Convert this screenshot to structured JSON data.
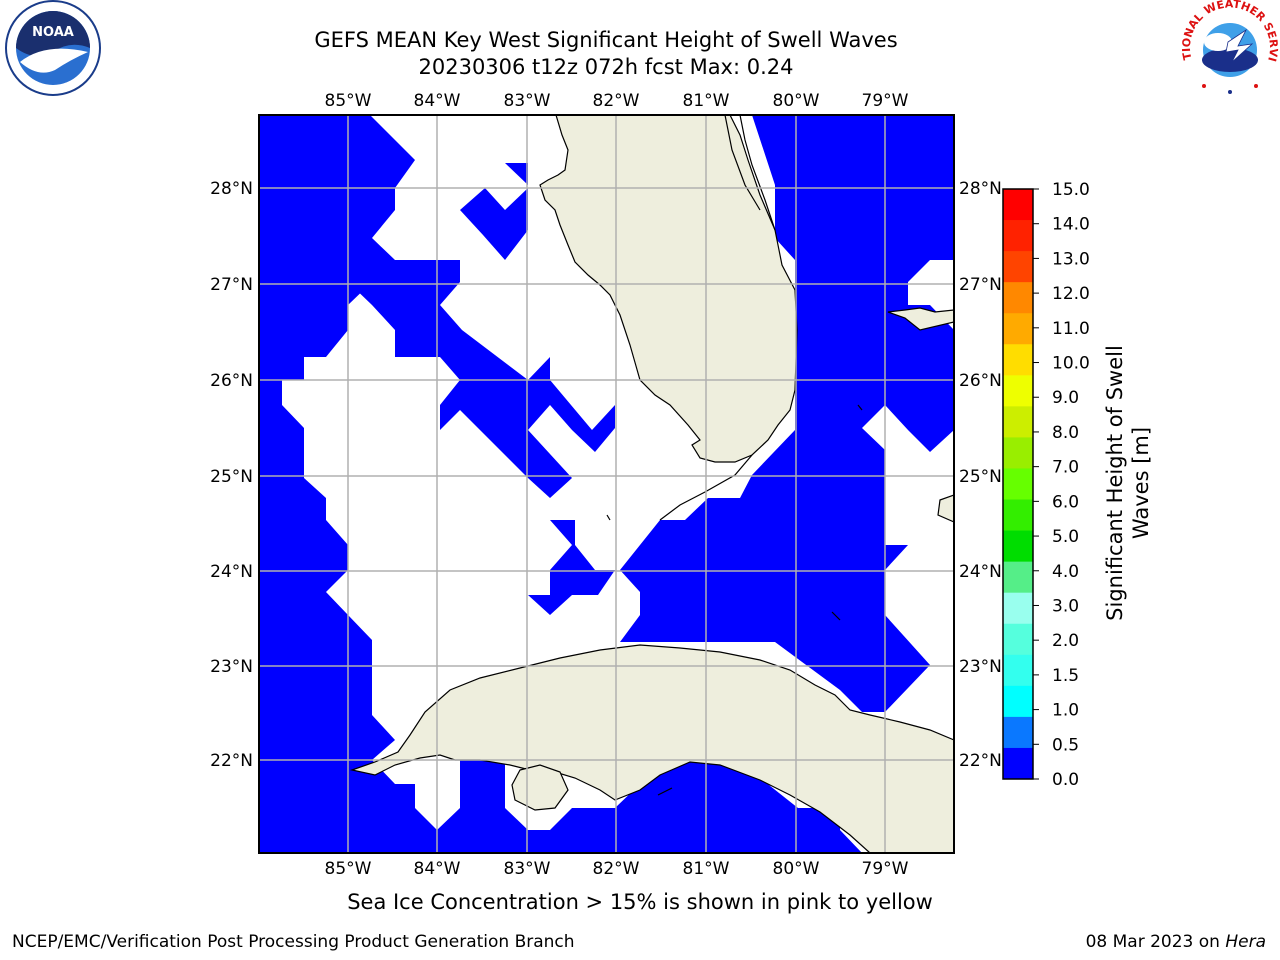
{
  "header": {
    "title_line1": "GEFS MEAN Key West Significant Height of Swell Waves",
    "title_line2": "20230306 t12z 072h fcst   Max: 0.24"
  },
  "logos": {
    "noaa": "NOAA",
    "nws": "NATIONAL WEATHER SERVICE"
  },
  "map": {
    "lon_ticks": [
      "85°W",
      "84°W",
      "83°W",
      "82°W",
      "81°W",
      "80°W",
      "79°W"
    ],
    "lat_ticks": [
      "28°N",
      "27°N",
      "26°N",
      "25°N",
      "24°N",
      "23°N",
      "22°N"
    ],
    "colors": {
      "ocean_low": "#0000ff",
      "land": "#eeeedd",
      "grid": "#b0b0b0",
      "coast": "#000000"
    }
  },
  "colorbar": {
    "label_line1": "Significant Height of Swell",
    "label_line2": "Waves [m]",
    "ticks": [
      "0.0",
      "0.5",
      "1.0",
      "1.5",
      "2.0",
      "3.0",
      "4.0",
      "5.0",
      "6.0",
      "7.0",
      "8.0",
      "9.0",
      "10.0",
      "11.0",
      "12.0",
      "13.0",
      "14.0",
      "15.0"
    ],
    "colors": [
      "#0000ff",
      "#0a78ff",
      "#00ffff",
      "#33ffee",
      "#55ffdd",
      "#99ffee",
      "#55ee88",
      "#00dd00",
      "#33ee00",
      "#66ff00",
      "#99ee00",
      "#ccee00",
      "#eeff00",
      "#ffdd00",
      "#ffaa00",
      "#ff8800",
      "#ff4400",
      "#ff2200",
      "#ff0000"
    ]
  },
  "note": "Sea Ice Concentration > 15% is shown in pink to yellow",
  "footer": {
    "left": "NCEP/EMC/Verification Post Processing Product Generation Branch",
    "right_date": "08 Mar 2023 on ",
    "right_host": "Hera"
  }
}
